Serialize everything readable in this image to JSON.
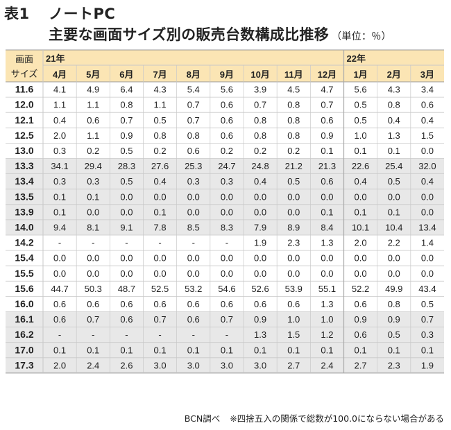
{
  "title": {
    "label": "表1",
    "main": "ノートPC"
  },
  "subtitle": {
    "text": "主要な画面サイズ別の販売台数構成比推移",
    "unit": "（単位：％）"
  },
  "header": {
    "corner_line1": "画面",
    "corner_line2": "サイズ"
  },
  "colors": {
    "header_bg": "#fbe5b4",
    "band_bg": "#e8e8e8",
    "line": "#c8c8c8"
  },
  "chart_data": {
    "type": "table",
    "years": [
      {
        "label": "21年",
        "span": 9
      },
      {
        "label": "22年",
        "span": 3
      }
    ],
    "columns": [
      "4月",
      "5月",
      "6月",
      "7月",
      "8月",
      "9月",
      "10月",
      "11月",
      "12月",
      "1月",
      "2月",
      "3月"
    ],
    "groups": [
      5,
      5,
      5,
      4
    ],
    "rows": [
      {
        "size": "11.6",
        "values": [
          "4.1",
          "4.9",
          "6.4",
          "4.3",
          "5.4",
          "5.6",
          "3.9",
          "4.5",
          "4.7",
          "5.6",
          "4.3",
          "3.4"
        ]
      },
      {
        "size": "12.0",
        "values": [
          "1.1",
          "1.1",
          "0.8",
          "1.1",
          "0.7",
          "0.6",
          "0.7",
          "0.8",
          "0.7",
          "0.5",
          "0.8",
          "0.6"
        ]
      },
      {
        "size": "12.1",
        "values": [
          "0.4",
          "0.6",
          "0.7",
          "0.5",
          "0.7",
          "0.6",
          "0.8",
          "0.8",
          "0.6",
          "0.5",
          "0.4",
          "0.4"
        ]
      },
      {
        "size": "12.5",
        "values": [
          "2.0",
          "1.1",
          "0.9",
          "0.8",
          "0.8",
          "0.6",
          "0.8",
          "0.8",
          "0.9",
          "1.0",
          "1.3",
          "1.5"
        ]
      },
      {
        "size": "13.0",
        "values": [
          "0.3",
          "0.2",
          "0.5",
          "0.2",
          "0.6",
          "0.2",
          "0.2",
          "0.2",
          "0.1",
          "0.1",
          "0.1",
          "0.0"
        ]
      },
      {
        "size": "13.3",
        "values": [
          "34.1",
          "29.4",
          "28.3",
          "27.6",
          "25.3",
          "24.7",
          "24.8",
          "21.2",
          "21.3",
          "22.6",
          "25.4",
          "32.0"
        ]
      },
      {
        "size": "13.4",
        "values": [
          "0.3",
          "0.3",
          "0.5",
          "0.4",
          "0.3",
          "0.3",
          "0.4",
          "0.5",
          "0.6",
          "0.4",
          "0.5",
          "0.4"
        ]
      },
      {
        "size": "13.5",
        "values": [
          "0.1",
          "0.1",
          "0.0",
          "0.0",
          "0.0",
          "0.0",
          "0.0",
          "0.0",
          "0.0",
          "0.0",
          "0.0",
          "0.0"
        ]
      },
      {
        "size": "13.9",
        "values": [
          "0.1",
          "0.0",
          "0.0",
          "0.1",
          "0.0",
          "0.0",
          "0.0",
          "0.0",
          "0.1",
          "0.1",
          "0.1",
          "0.0"
        ]
      },
      {
        "size": "14.0",
        "values": [
          "9.4",
          "8.1",
          "9.1",
          "7.8",
          "8.5",
          "8.3",
          "7.9",
          "8.9",
          "8.4",
          "10.1",
          "10.4",
          "13.4"
        ]
      },
      {
        "size": "14.2",
        "values": [
          "-",
          "-",
          "-",
          "-",
          "-",
          "-",
          "1.9",
          "2.3",
          "1.3",
          "2.0",
          "2.2",
          "1.4"
        ]
      },
      {
        "size": "15.4",
        "values": [
          "0.0",
          "0.0",
          "0.0",
          "0.0",
          "0.0",
          "0.0",
          "0.0",
          "0.0",
          "0.0",
          "0.0",
          "0.0",
          "0.0"
        ]
      },
      {
        "size": "15.5",
        "values": [
          "0.0",
          "0.0",
          "0.0",
          "0.0",
          "0.0",
          "0.0",
          "0.0",
          "0.0",
          "0.0",
          "0.0",
          "0.0",
          "0.0"
        ]
      },
      {
        "size": "15.6",
        "values": [
          "44.7",
          "50.3",
          "48.7",
          "52.5",
          "53.2",
          "54.6",
          "52.6",
          "53.9",
          "55.1",
          "52.2",
          "49.9",
          "43.4"
        ]
      },
      {
        "size": "16.0",
        "values": [
          "0.6",
          "0.6",
          "0.6",
          "0.6",
          "0.6",
          "0.6",
          "0.6",
          "0.6",
          "1.3",
          "0.6",
          "0.8",
          "0.5"
        ]
      },
      {
        "size": "16.1",
        "values": [
          "0.6",
          "0.7",
          "0.6",
          "0.7",
          "0.6",
          "0.7",
          "0.9",
          "1.0",
          "1.0",
          "0.9",
          "0.9",
          "0.7"
        ]
      },
      {
        "size": "16.2",
        "values": [
          "-",
          "-",
          "-",
          "-",
          "-",
          "-",
          "1.3",
          "1.5",
          "1.2",
          "0.6",
          "0.5",
          "0.3"
        ]
      },
      {
        "size": "17.0",
        "values": [
          "0.1",
          "0.1",
          "0.1",
          "0.1",
          "0.1",
          "0.1",
          "0.1",
          "0.1",
          "0.1",
          "0.1",
          "0.1",
          "0.1"
        ]
      },
      {
        "size": "17.3",
        "values": [
          "2.0",
          "2.4",
          "2.6",
          "3.0",
          "3.0",
          "3.0",
          "3.0",
          "2.7",
          "2.4",
          "2.7",
          "2.3",
          "1.9"
        ]
      }
    ]
  },
  "footer": {
    "source": "BCN調べ",
    "note": "※四捨五入の関係で総数が100.0にならない場合がある"
  }
}
